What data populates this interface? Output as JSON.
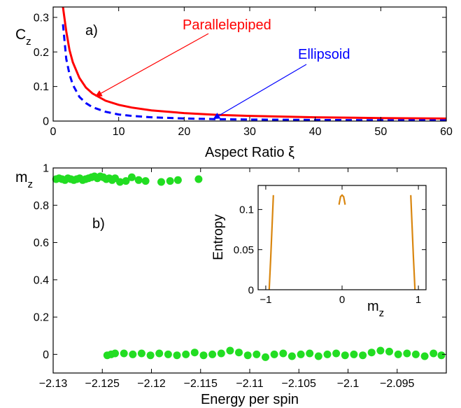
{
  "chart_data": [
    {
      "panel": "a)",
      "type": "line",
      "xlabel": "Aspect Ratio ξ",
      "ylabel": "C",
      "ylabel_sub": "z",
      "xlim": [
        0,
        60
      ],
      "ylim": [
        0,
        0.33
      ],
      "xticks": [
        0,
        10,
        20,
        30,
        40,
        50,
        60
      ],
      "yticks": [
        0,
        0.1,
        0.2,
        0.3
      ],
      "ytick_labels": [
        "0",
        "0.1",
        "0.2",
        "0.3"
      ],
      "series": [
        {
          "name": "Parallelepiped",
          "color": "#ff0000",
          "style": "solid",
          "x": [
            1.5,
            2,
            2.5,
            3,
            4,
            5,
            6,
            8,
            10,
            12,
            15,
            20,
            25,
            30,
            40,
            50,
            60
          ],
          "y": [
            0.33,
            0.26,
            0.205,
            0.17,
            0.125,
            0.097,
            0.08,
            0.059,
            0.047,
            0.039,
            0.031,
            0.023,
            0.018,
            0.015,
            0.011,
            0.0088,
            0.0073
          ]
        },
        {
          "name": "Ellipsoid",
          "color": "#0000ff",
          "style": "dashed",
          "x": [
            1.5,
            2,
            2.5,
            3,
            4,
            5,
            6,
            8,
            10,
            12,
            15,
            20,
            25,
            30,
            40,
            50,
            60
          ],
          "y": [
            0.28,
            0.18,
            0.135,
            0.105,
            0.07,
            0.052,
            0.04,
            0.027,
            0.019,
            0.015,
            0.011,
            0.0075,
            0.0055,
            0.0045,
            0.0032,
            0.0025,
            0.002
          ]
        }
      ],
      "annotations": [
        {
          "text": "Parallelepiped",
          "color": "#ff0000",
          "points_to": [
            6.5,
            0.072
          ]
        },
        {
          "text": "Ellipsoid",
          "color": "#0000ff",
          "points_to": [
            24.5,
            0.007
          ]
        }
      ]
    },
    {
      "panel": "b)",
      "type": "scatter",
      "xlabel": "Energy per spin",
      "ylabel": "m",
      "ylabel_sub": "z",
      "xlim": [
        -2.13,
        -2.09
      ],
      "ylim": [
        -0.1,
        1.0
      ],
      "xticks": [
        -2.13,
        -2.125,
        -2.12,
        -2.115,
        -2.11,
        -2.105,
        -2.1,
        -2.095
      ],
      "xtick_labels": [
        "−2.13",
        "−2.125",
        "−2.12",
        "−2.115",
        "−2.11",
        "−2.105",
        "−2.1",
        "−2.095"
      ],
      "yticks": [
        0,
        0.2,
        0.4,
        0.6,
        0.8,
        1
      ],
      "ytick_labels": [
        "0",
        "0.2",
        "0.4",
        "0.6",
        "0.8",
        "1"
      ],
      "series": [
        {
          "color": "#22dd22",
          "x": [
            -2.1297,
            -2.1294,
            -2.1291,
            -2.1288,
            -2.1285,
            -2.1282,
            -2.1279,
            -2.1276,
            -2.1273,
            -2.127,
            -2.1267,
            -2.1264,
            -2.1261,
            -2.1258,
            -2.1255,
            -2.1252,
            -2.1249,
            -2.1246,
            -2.1243,
            -2.124,
            -2.1237,
            -2.1232,
            -2.1226,
            -2.122,
            -2.1213,
            -2.1206,
            -2.119,
            -2.1181,
            -2.1173,
            -2.1152
          ],
          "y": [
            0.94,
            0.945,
            0.94,
            0.935,
            0.945,
            0.94,
            0.935,
            0.94,
            0.945,
            0.935,
            0.94,
            0.945,
            0.95,
            0.955,
            0.945,
            0.955,
            0.95,
            0.94,
            0.945,
            0.935,
            0.945,
            0.925,
            0.93,
            0.95,
            0.935,
            0.93,
            0.925,
            0.93,
            0.935,
            0.94
          ]
        },
        {
          "color": "#22dd22",
          "x": [
            -2.1245,
            -2.1241,
            -2.1237,
            -2.1228,
            -2.1219,
            -2.121,
            -2.1201,
            -2.1192,
            -2.1183,
            -2.1174,
            -2.1165,
            -2.1156,
            -2.1147,
            -2.1138,
            -2.1129,
            -2.112,
            -2.1111,
            -2.1102,
            -2.1093,
            -2.1084,
            -2.1075,
            -2.1066,
            -2.1057,
            -2.1048,
            -2.1039,
            -2.103,
            -2.1021,
            -2.1012,
            -2.1003,
            -2.0994,
            -2.0985,
            -2.0976,
            -2.0967,
            -2.0958,
            -2.0949,
            -2.094,
            -2.0931,
            -2.0922,
            -2.0913,
            -2.0905
          ],
          "y": [
            -0.005,
            0.0,
            0.005,
            0.005,
            0.0,
            0.005,
            -0.005,
            0.005,
            0.0,
            -0.005,
            0.0,
            0.01,
            -0.005,
            0.0,
            0.005,
            0.02,
            0.01,
            -0.005,
            0.0,
            -0.015,
            0.0,
            0.005,
            -0.01,
            0.0,
            0.005,
            -0.01,
            0.0,
            0.005,
            -0.005,
            0.0,
            -0.005,
            0.01,
            0.02,
            0.015,
            0.0,
            0.005,
            0.0,
            -0.01,
            0.005,
            -0.005
          ]
        }
      ],
      "inset": {
        "type": "line",
        "xlabel": "m",
        "xlabel_sub": "z",
        "ylabel": "Entropy",
        "xlim": [
          -1.1,
          1.1
        ],
        "ylim": [
          0,
          0.13
        ],
        "xticks": [
          -1,
          0,
          1
        ],
        "xtick_labels": [
          "−1",
          "0",
          "1"
        ],
        "yticks": [
          0,
          0.05,
          0.1
        ],
        "ytick_labels": [
          "0",
          "0.05",
          "0.1"
        ],
        "color": "#d9860f",
        "segments": [
          {
            "x": [
              -0.955,
              -0.935,
              -0.915,
              -0.9
            ],
            "y": [
              0,
              0.04,
              0.085,
              0.118
            ]
          },
          {
            "x": [
              -0.04,
              -0.02,
              0.0,
              0.02,
              0.04
            ],
            "y": [
              0.106,
              0.116,
              0.118,
              0.116,
              0.106
            ]
          },
          {
            "x": [
              0.9,
              0.915,
              0.935,
              0.955
            ],
            "y": [
              0.118,
              0.085,
              0.04,
              0
            ]
          }
        ]
      }
    }
  ]
}
